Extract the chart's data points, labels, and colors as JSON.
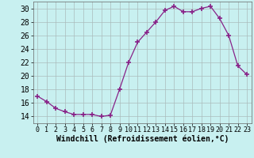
{
  "x": [
    0,
    1,
    2,
    3,
    4,
    5,
    6,
    7,
    8,
    9,
    10,
    11,
    12,
    13,
    14,
    15,
    16,
    17,
    18,
    19,
    20,
    21,
    22,
    23
  ],
  "y": [
    17.0,
    16.2,
    15.2,
    14.7,
    14.3,
    14.3,
    14.3,
    14.0,
    14.2,
    18.0,
    22.0,
    25.0,
    26.5,
    28.0,
    29.7,
    30.3,
    29.5,
    29.5,
    30.0,
    30.3,
    28.5,
    26.0,
    21.5,
    20.2
  ],
  "line_color": "#882288",
  "marker": "+",
  "xlabel": "Windchill (Refroidissement éolien,°C)",
  "xlim": [
    -0.5,
    23.5
  ],
  "ylim": [
    13.0,
    31.0
  ],
  "yticks": [
    14,
    16,
    18,
    20,
    22,
    24,
    26,
    28,
    30
  ],
  "xticks": [
    0,
    1,
    2,
    3,
    4,
    5,
    6,
    7,
    8,
    9,
    10,
    11,
    12,
    13,
    14,
    15,
    16,
    17,
    18,
    19,
    20,
    21,
    22,
    23
  ],
  "bg_color": "#c8f0f0",
  "grid_color": "#aabbbb",
  "tick_fontsize": 6,
  "xlabel_fontsize": 7
}
